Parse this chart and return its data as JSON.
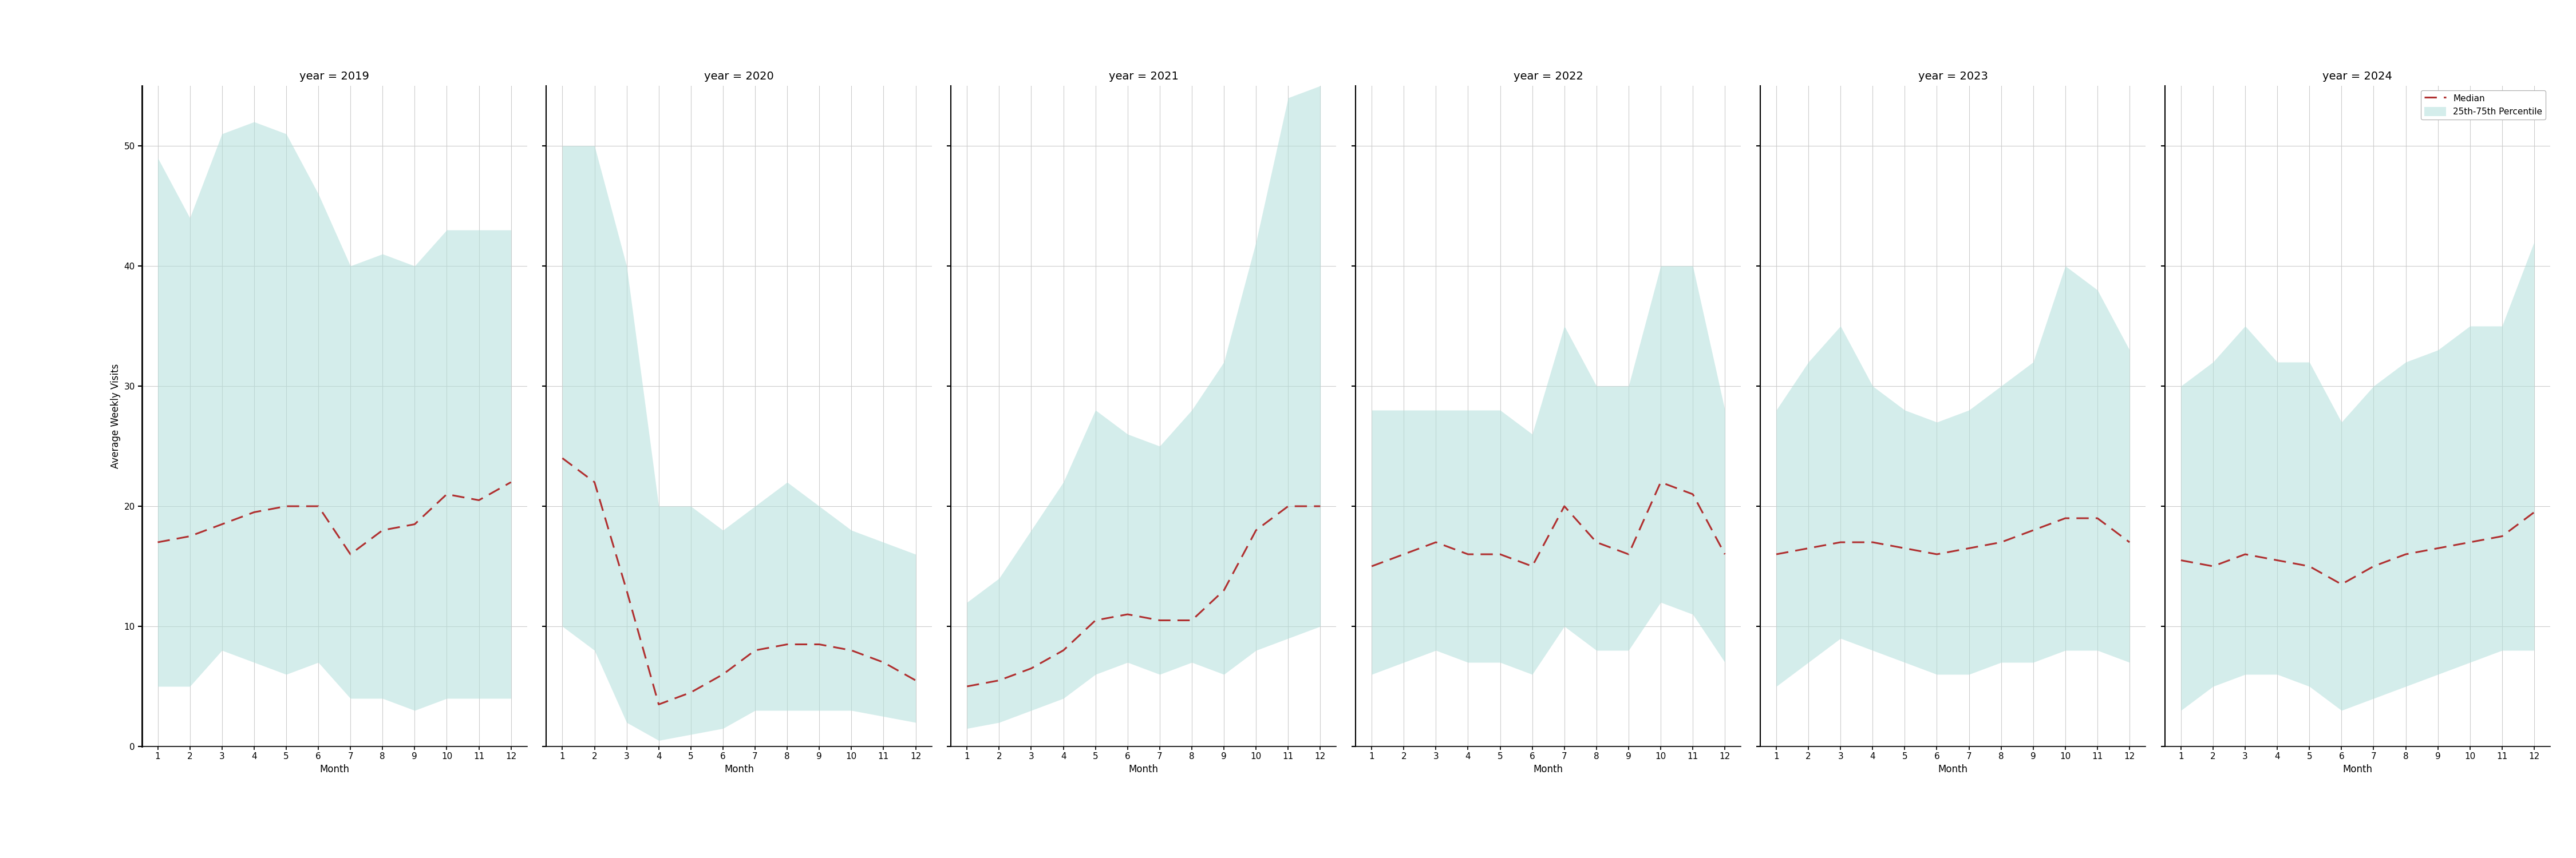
{
  "years": [
    2019,
    2020,
    2021,
    2022,
    2023,
    2024
  ],
  "months": [
    1,
    2,
    3,
    4,
    5,
    6,
    7,
    8,
    9,
    10,
    11,
    12
  ],
  "median": {
    "2019": [
      17,
      17.5,
      18.5,
      19.5,
      20,
      20,
      16,
      18,
      18.5,
      21,
      20.5,
      22
    ],
    "2020": [
      24,
      22,
      13,
      3.5,
      4.5,
      6,
      8,
      8.5,
      8.5,
      8,
      7,
      5.5
    ],
    "2021": [
      5,
      5.5,
      6.5,
      8,
      10.5,
      11,
      10.5,
      10.5,
      13,
      18,
      20,
      20
    ],
    "2022": [
      15,
      16,
      17,
      16,
      16,
      15,
      20,
      17,
      16,
      22,
      21,
      16
    ],
    "2023": [
      16,
      16.5,
      17,
      17,
      16.5,
      16,
      16.5,
      17,
      18,
      19,
      19,
      17
    ],
    "2024": [
      15.5,
      15,
      16,
      15.5,
      15,
      13.5,
      15,
      16,
      16.5,
      17,
      17.5,
      19.5
    ]
  },
  "q25": {
    "2019": [
      5,
      5,
      8,
      7,
      6,
      7,
      4,
      4,
      3,
      4,
      4,
      4
    ],
    "2020": [
      10,
      8,
      2,
      0.5,
      1,
      1.5,
      3,
      3,
      3,
      3,
      2.5,
      2
    ],
    "2021": [
      1.5,
      2,
      3,
      4,
      6,
      7,
      6,
      7,
      6,
      8,
      9,
      10
    ],
    "2022": [
      6,
      7,
      8,
      7,
      7,
      6,
      10,
      8,
      8,
      12,
      11,
      7
    ],
    "2023": [
      5,
      7,
      9,
      8,
      7,
      6,
      6,
      7,
      7,
      8,
      8,
      7
    ],
    "2024": [
      3,
      5,
      6,
      6,
      5,
      3,
      4,
      5,
      6,
      7,
      8,
      8
    ]
  },
  "q75": {
    "2019": [
      49,
      44,
      51,
      52,
      51,
      46,
      40,
      41,
      40,
      43,
      43,
      43
    ],
    "2020": [
      50,
      50,
      40,
      20,
      20,
      18,
      20,
      22,
      20,
      18,
      17,
      16
    ],
    "2021": [
      12,
      14,
      18,
      22,
      28,
      26,
      25,
      28,
      32,
      42,
      54,
      55
    ],
    "2022": [
      28,
      28,
      28,
      28,
      28,
      26,
      35,
      30,
      30,
      40,
      40,
      28
    ],
    "2023": [
      28,
      32,
      35,
      30,
      28,
      27,
      28,
      30,
      32,
      40,
      38,
      33
    ],
    "2024": [
      30,
      32,
      35,
      32,
      32,
      27,
      30,
      32,
      33,
      35,
      35,
      42
    ]
  },
  "fill_color": "#b2dfdb",
  "fill_alpha": 0.55,
  "line_color": "#b03030",
  "title_fontsize": 14,
  "label_fontsize": 12,
  "tick_fontsize": 11,
  "ylabel": "Average Weekly Visits",
  "xlabel": "Month",
  "ylim": [
    0,
    55
  ],
  "yticks": [
    0,
    10,
    20,
    30,
    40,
    50
  ],
  "xticks": [
    1,
    2,
    3,
    4,
    5,
    6,
    7,
    8,
    9,
    10,
    11,
    12
  ],
  "legend_labels": [
    "Median",
    "25th-75th Percentile"
  ],
  "bg_color": "#ffffff",
  "grid_color": "#cccccc"
}
